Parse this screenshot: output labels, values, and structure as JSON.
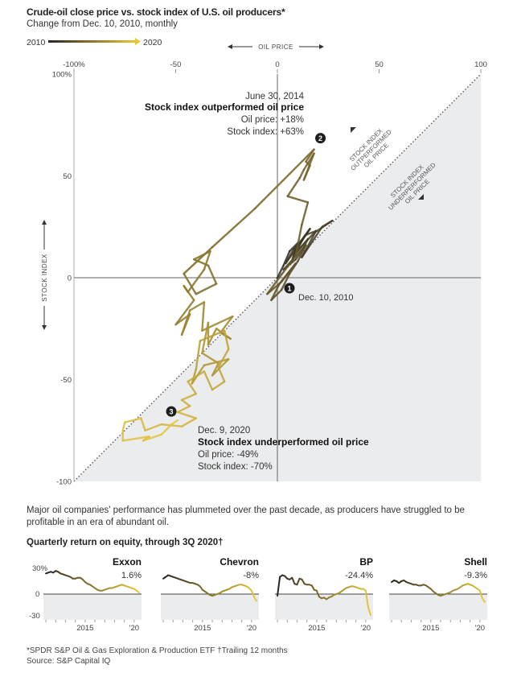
{
  "header": {
    "title": "Crude-oil close price vs. stock index of U.S. oil producers*",
    "subtitle": "Change from Dec. 10, 2010, monthly",
    "legend_start": "2010",
    "legend_end": "2020"
  },
  "colors": {
    "start": "#2b2520",
    "end": "#e6c63a",
    "shade": "#ebecee",
    "axis": "#666666"
  },
  "chart_data": [
    {
      "type": "line",
      "title": "Crude-oil close price vs. stock index of U.S. oil producers*",
      "subtitle": "Change from Dec. 10, 2010, monthly",
      "xlabel": "OIL PRICE",
      "ylabel": "STOCK INDEX",
      "xlim": [
        -100,
        100
      ],
      "ylim": [
        -100,
        100
      ],
      "x_ticks": [
        "-100%",
        "-50",
        "0",
        "50",
        "100"
      ],
      "y_ticks": [
        "100%",
        "50",
        "0",
        "-50",
        "-100"
      ],
      "region_labels": {
        "above": [
          "STOCK INDEX",
          "OUTPERFORMED",
          "OIL PRICE"
        ],
        "below": [
          "STOCK INDEX",
          "UNDERPERFORMED",
          "OIL PRICE"
        ]
      },
      "series": [
        {
          "x": [
            0,
            3,
            6,
            10,
            7,
            13,
            16,
            12,
            4,
            8,
            14,
            19,
            12,
            22,
            27,
            18,
            8,
            15,
            13,
            3,
            9,
            14,
            10,
            6,
            2,
            -3,
            1,
            5,
            9,
            2,
            -5,
            9,
            12,
            15,
            5,
            11,
            13,
            18,
            13,
            16,
            14,
            18,
            -11,
            -32,
            -46,
            -40,
            -30,
            -34,
            -41,
            -33,
            -36,
            -44,
            -46,
            -41,
            -50,
            -43,
            -47,
            -43,
            -36,
            -37,
            -22,
            -28,
            -23,
            -30,
            -34,
            -34,
            -37,
            -29,
            -32,
            -24,
            -36,
            -42,
            -40,
            -38,
            -26,
            -24,
            -29,
            -26,
            -32,
            -36,
            -44,
            -40,
            -47,
            -43,
            -49,
            -40,
            -47,
            -57,
            -65,
            -67,
            -75,
            -76,
            -76,
            -63,
            -66,
            -57,
            -52,
            -49
          ],
          "y": [
            0,
            6,
            13,
            17,
            8,
            20,
            24,
            18,
            7,
            14,
            21,
            23,
            10,
            25,
            28,
            22,
            11,
            19,
            15,
            4,
            9,
            16,
            8,
            2,
            -6,
            -11,
            -3,
            2,
            7,
            -2,
            -8,
            11,
            26,
            37,
            40,
            49,
            53,
            61,
            48,
            55,
            57,
            63,
            34,
            15,
            2,
            -8,
            -3,
            6,
            9,
            13,
            4,
            -7,
            -4,
            -11,
            -23,
            -18,
            -28,
            -16,
            -12,
            -26,
            -19,
            -27,
            -30,
            -25,
            -33,
            -22,
            -37,
            -42,
            -48,
            -40,
            -43,
            -52,
            -45,
            -31,
            -26,
            -35,
            -44,
            -51,
            -55,
            -46,
            -51,
            -57,
            -60,
            -63,
            -66,
            -69,
            -73,
            -72,
            -75,
            -69,
            -71,
            -75,
            -80,
            -78,
            -80,
            -77,
            -72,
            -70
          ]
        }
      ],
      "annotations": [
        {
          "marker": "1",
          "date": "Dec. 10, 2010"
        },
        {
          "marker": "2",
          "date": "June 30, 2014",
          "headline": "Stock index outperformed oil price",
          "oil": "Oil price: +18%",
          "stock": "Stock index: +63%"
        },
        {
          "marker": "3",
          "date": "Dec. 9, 2020",
          "headline": "Stock index underperformed oil price",
          "oil": "Oil price: -49%",
          "stock": "Stock index: -70%"
        }
      ]
    },
    {
      "type": "area",
      "title": "Exxon",
      "value_label": "1.6%",
      "ylim": [
        -30,
        30
      ],
      "y_ticks": [
        "30%",
        "0",
        "-30"
      ],
      "x_ticks": [
        "2015",
        "'20"
      ],
      "x": [
        2011,
        2011.25,
        2011.5,
        2011.75,
        2012,
        2012.25,
        2012.5,
        2012.75,
        2013,
        2013.25,
        2013.5,
        2013.75,
        2014,
        2014.25,
        2014.5,
        2014.75,
        2015,
        2015.25,
        2015.5,
        2015.75,
        2016,
        2016.25,
        2016.5,
        2016.75,
        2017,
        2017.25,
        2017.5,
        2017.75,
        2018,
        2018.25,
        2018.5,
        2018.75,
        2019,
        2019.25,
        2019.5,
        2019.75,
        2020,
        2020.25,
        2020.5
      ],
      "values": [
        24,
        25,
        26,
        25,
        27,
        26,
        24,
        23,
        22,
        21,
        20,
        18,
        18,
        19,
        19,
        17,
        14,
        12,
        11,
        9,
        7,
        5,
        4,
        4,
        5,
        6,
        7,
        7,
        8,
        9,
        10,
        11,
        10,
        9,
        8,
        7,
        6,
        4,
        1.6
      ]
    },
    {
      "type": "area",
      "title": "Chevron",
      "value_label": "-8%",
      "ylim": [
        -30,
        30
      ],
      "x_ticks": [
        "2015",
        "'20"
      ],
      "x": [
        2011,
        2011.25,
        2011.5,
        2011.75,
        2012,
        2012.25,
        2012.5,
        2012.75,
        2013,
        2013.25,
        2013.5,
        2013.75,
        2014,
        2014.25,
        2014.5,
        2014.75,
        2015,
        2015.25,
        2015.5,
        2015.75,
        2016,
        2016.25,
        2016.5,
        2016.75,
        2017,
        2017.25,
        2017.5,
        2017.75,
        2018,
        2018.25,
        2018.5,
        2018.75,
        2019,
        2019.25,
        2019.5,
        2019.75,
        2020,
        2020.25,
        2020.5
      ],
      "values": [
        18,
        20,
        22,
        21,
        20,
        19,
        18,
        17,
        16,
        15,
        14,
        13,
        13,
        12,
        11,
        9,
        5,
        3,
        1,
        -1,
        -2,
        -1,
        0,
        1,
        3,
        4,
        5,
        6,
        8,
        9,
        10,
        11,
        11,
        10,
        9,
        7,
        4,
        -3,
        -8
      ]
    },
    {
      "type": "area",
      "title": "BP",
      "value_label": "-24.4%",
      "ylim": [
        -30,
        30
      ],
      "x_ticks": [
        "2015",
        "'20"
      ],
      "x": [
        2011,
        2011.25,
        2011.5,
        2011.75,
        2012,
        2012.25,
        2012.5,
        2012.75,
        2013,
        2013.25,
        2013.5,
        2013.75,
        2014,
        2014.25,
        2014.5,
        2014.75,
        2015,
        2015.25,
        2015.5,
        2015.75,
        2016,
        2016.25,
        2016.5,
        2016.75,
        2017,
        2017.25,
        2017.5,
        2017.75,
        2018,
        2018.25,
        2018.5,
        2018.75,
        2019,
        2019.25,
        2019.5,
        2019.75,
        2020,
        2020.25,
        2020.5
      ],
      "values": [
        -2,
        20,
        22,
        21,
        18,
        17,
        19,
        12,
        11,
        18,
        17,
        12,
        11,
        11,
        10,
        5,
        4,
        -3,
        -5,
        -4,
        -6,
        -4,
        -3,
        -1,
        0,
        1,
        3,
        5,
        7,
        8,
        9,
        9,
        8,
        7,
        6,
        6,
        4,
        -15,
        -24.4
      ]
    },
    {
      "type": "area",
      "title": "Shell",
      "value_label": "-9.3%",
      "ylim": [
        -30,
        30
      ],
      "x_ticks": [
        "2015",
        "'20"
      ],
      "x": [
        2011,
        2011.25,
        2011.5,
        2011.75,
        2012,
        2012.25,
        2012.5,
        2012.75,
        2013,
        2013.25,
        2013.5,
        2013.75,
        2014,
        2014.25,
        2014.5,
        2014.75,
        2015,
        2015.25,
        2015.5,
        2015.75,
        2016,
        2016.25,
        2016.5,
        2016.75,
        2017,
        2017.25,
        2017.5,
        2017.75,
        2018,
        2018.25,
        2018.5,
        2018.75,
        2019,
        2019.25,
        2019.5,
        2019.75,
        2020,
        2020.25,
        2020.5
      ],
      "values": [
        14,
        16,
        15,
        13,
        15,
        16,
        14,
        13,
        12,
        11,
        11,
        10,
        10,
        11,
        10,
        8,
        6,
        3,
        1,
        -1,
        -2,
        -1,
        0,
        1,
        2,
        4,
        5,
        6,
        8,
        10,
        11,
        12,
        11,
        10,
        8,
        6,
        4,
        -5,
        -9.3
      ]
    }
  ],
  "note": "Major oil companies' performance has plummeted over the past decade, as producers have struggled to be profitable in an era of abundant oil.",
  "small_multiples_title": "Quarterly return on equity, through 3Q 2020†",
  "footnote_1": "*SPDR S&P Oil & Gas Exploration & Production ETF  †Trailing 12 months",
  "footnote_2": "Source: S&P Capital IQ"
}
